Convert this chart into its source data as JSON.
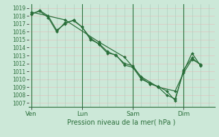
{
  "xlabel": "Pression niveau de la mer( hPa )",
  "background_color": "#cce8d8",
  "plot_bg_color": "#cce8d8",
  "grid_color_h": "#e8b8b8",
  "grid_color_v": "#a8c8b8",
  "line_color": "#2a6e3a",
  "ylim": [
    1006.5,
    1019.5
  ],
  "yticks": [
    1007,
    1008,
    1009,
    1010,
    1011,
    1012,
    1013,
    1014,
    1015,
    1016,
    1017,
    1018,
    1019
  ],
  "xtick_labels": [
    "Ven",
    "Lun",
    "Sam",
    "Dim"
  ],
  "xtick_positions": [
    0,
    36,
    72,
    108
  ],
  "vline_positions": [
    0,
    36,
    72,
    108
  ],
  "xlim": [
    -2,
    130
  ],
  "series1": {
    "x": [
      0,
      6,
      12,
      18,
      24,
      30,
      36,
      42,
      48,
      54,
      60,
      66,
      72,
      78,
      84,
      90,
      96,
      102,
      108,
      114,
      120
    ],
    "y": [
      1018.3,
      1018.6,
      1017.8,
      1016.0,
      1017.2,
      1017.4,
      1016.6,
      1015.2,
      1014.4,
      1013.3,
      1013.1,
      1011.8,
      1011.5,
      1010.0,
      1009.5,
      1009.0,
      1008.0,
      1007.5,
      1011.0,
      1013.3,
      1011.7
    ]
  },
  "series2": {
    "x": [
      0,
      6,
      12,
      18,
      24,
      30,
      36,
      42,
      48,
      54,
      60,
      66,
      72,
      78,
      84,
      90,
      96,
      102,
      108,
      114,
      120
    ],
    "y": [
      1018.2,
      1018.7,
      1018.0,
      1016.2,
      1017.0,
      1017.5,
      1016.6,
      1015.0,
      1014.5,
      1013.5,
      1013.0,
      1012.0,
      1011.7,
      1010.2,
      1009.4,
      1009.1,
      1008.5,
      1007.3,
      1011.2,
      1012.7,
      1011.8
    ]
  },
  "series3": {
    "x": [
      0,
      24,
      48,
      66,
      78,
      90,
      102,
      108,
      114,
      120
    ],
    "y": [
      1018.5,
      1017.5,
      1014.7,
      1012.8,
      1010.3,
      1009.0,
      1008.5,
      1010.8,
      1012.5,
      1011.9
    ]
  },
  "xlabel_fontsize": 7,
  "ytick_fontsize": 5.5,
  "xtick_fontsize": 6.5
}
